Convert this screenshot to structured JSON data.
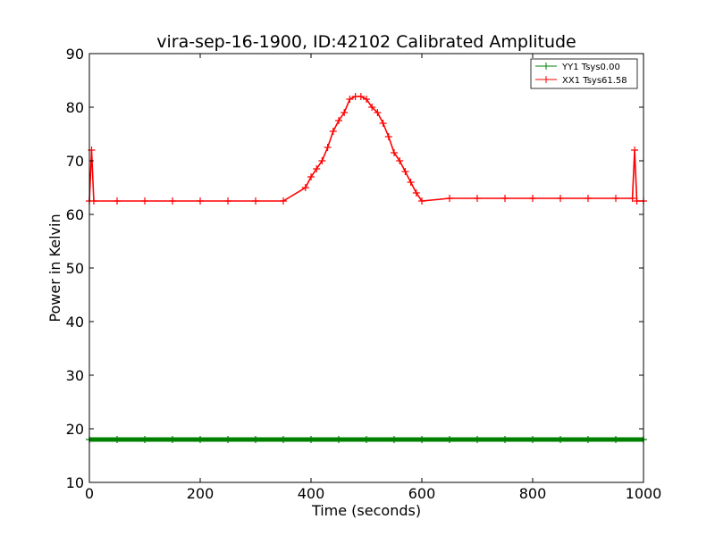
{
  "chart_data": {
    "type": "line",
    "title": "vira-sep-16-1900, ID:42102 Calibrated Amplitude",
    "xlabel": "Time (seconds)",
    "ylabel": "Power in Kelvin",
    "xlim": [
      0,
      1000
    ],
    "ylim": [
      10,
      90
    ],
    "xticks": [
      0,
      200,
      400,
      600,
      800,
      1000
    ],
    "yticks": [
      10,
      20,
      30,
      40,
      50,
      60,
      70,
      80,
      90
    ],
    "grid": false,
    "legend": "top-right",
    "series": [
      {
        "name": "YY1 Tsys0.00",
        "color": "#008000",
        "marker": "+",
        "x": [
          0,
          50,
          100,
          150,
          200,
          250,
          300,
          350,
          400,
          450,
          500,
          550,
          600,
          650,
          700,
          750,
          800,
          850,
          900,
          950,
          1000
        ],
        "y": [
          18,
          18,
          18,
          18,
          18,
          18,
          18,
          18,
          18,
          18,
          18,
          18,
          18,
          18,
          18,
          18,
          18,
          18,
          18,
          18,
          18
        ]
      },
      {
        "name": "XX1 Tsys61.58",
        "color": "#ff0000",
        "marker": "+",
        "x": [
          0,
          4,
          8,
          50,
          100,
          150,
          200,
          250,
          300,
          350,
          390,
          400,
          410,
          420,
          430,
          440,
          450,
          460,
          470,
          480,
          490,
          500,
          510,
          520,
          530,
          540,
          550,
          560,
          570,
          580,
          590,
          600,
          650,
          700,
          750,
          800,
          850,
          900,
          950,
          980,
          984,
          988,
          1000
        ],
        "y": [
          62.5,
          72,
          62.5,
          62.5,
          62.5,
          62.5,
          62.5,
          62.5,
          62.5,
          62.5,
          65,
          67,
          68.5,
          70,
          72.5,
          75.5,
          77.5,
          79,
          81.5,
          82,
          82,
          81.5,
          80,
          79,
          77,
          74.5,
          71.5,
          70,
          68,
          66,
          64,
          62.5,
          63,
          63,
          63,
          63,
          63,
          63,
          63,
          63,
          72,
          62.5,
          62.5
        ]
      }
    ]
  }
}
